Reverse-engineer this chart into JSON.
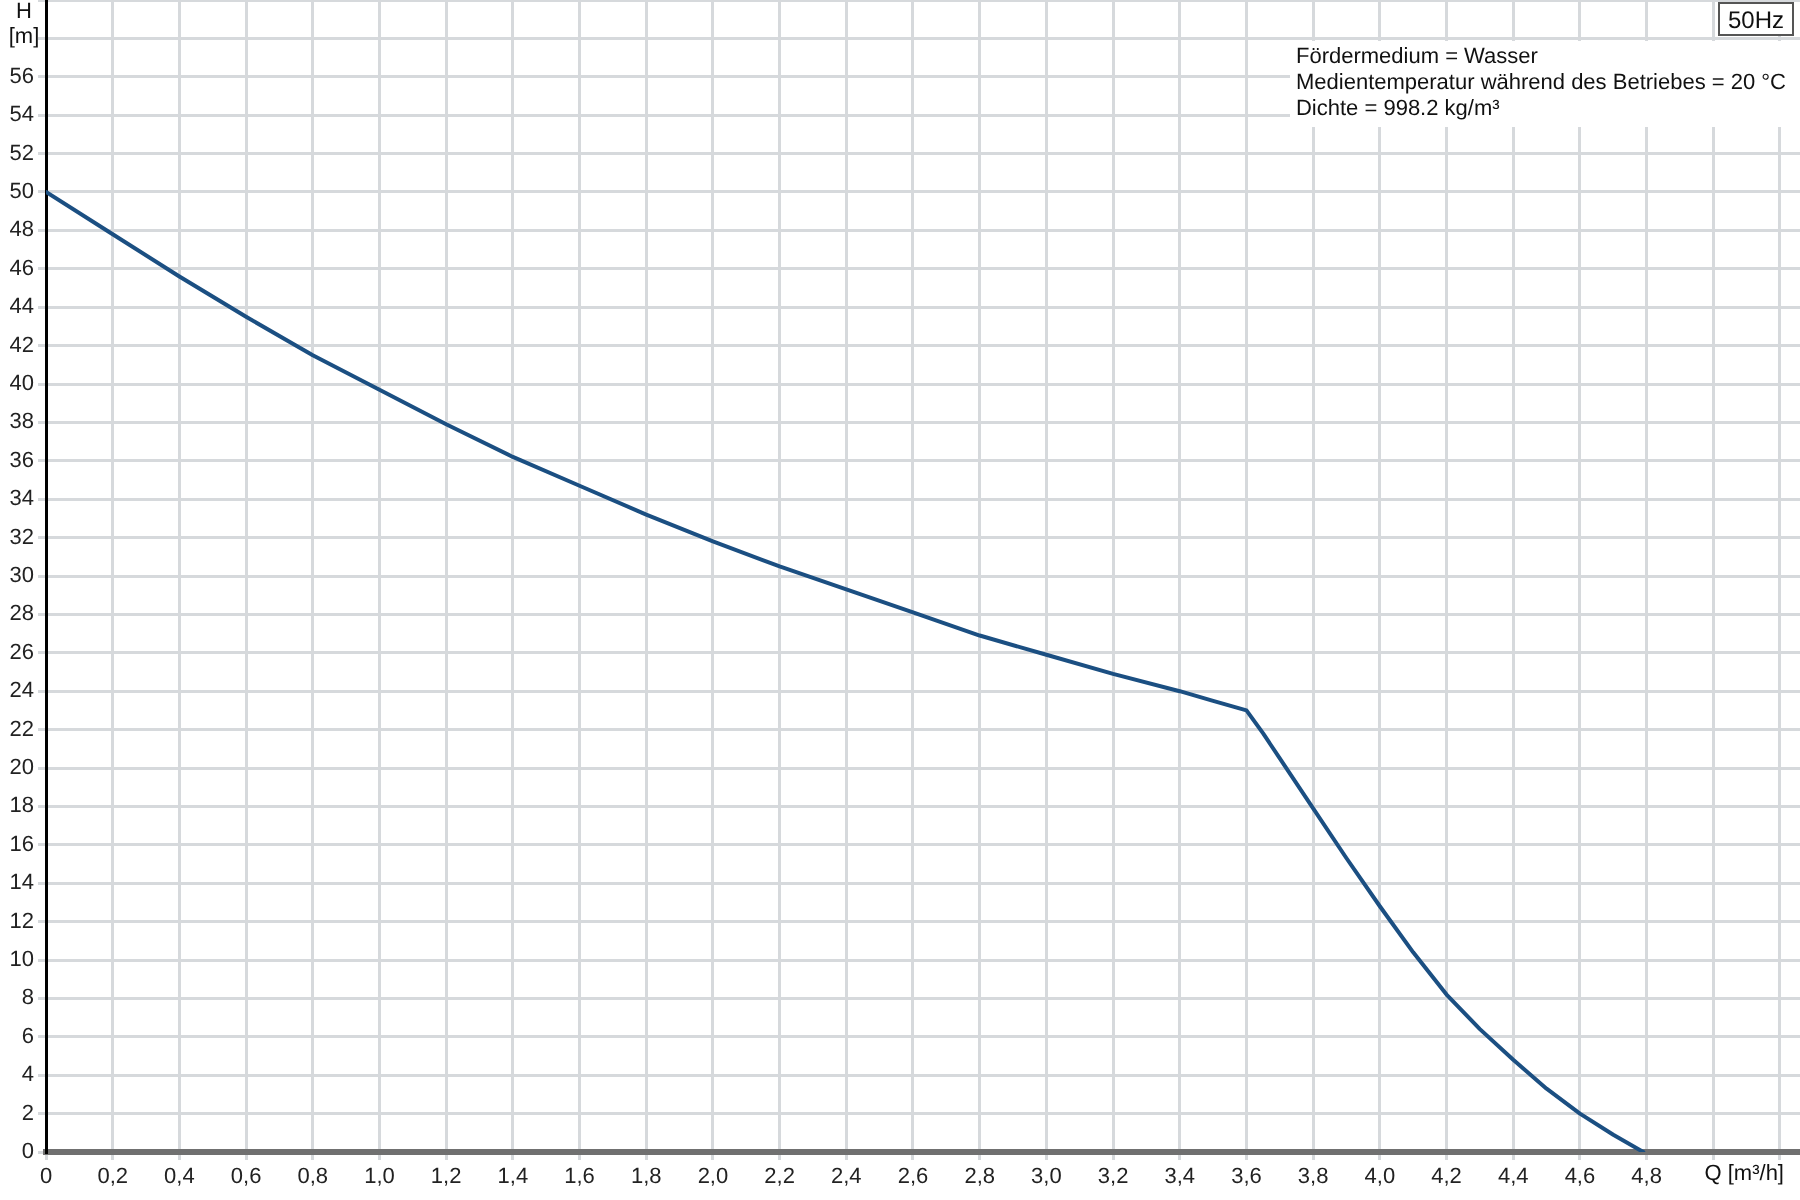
{
  "chart_data": {
    "type": "line",
    "title": "50Hz",
    "xlabel": "Q [m³/h]",
    "ylabel": "H [m]",
    "annotations": [
      "Fördermedium = Wasser",
      "Medientemperatur während des Betriebes = 20 °C",
      "Dichte = 998.2 kg/m³"
    ],
    "x": [
      0,
      0.2,
      0.4,
      0.6,
      0.8,
      1.0,
      1.2,
      1.4,
      1.6,
      1.8,
      2.0,
      2.2,
      2.4,
      2.6,
      2.8,
      3.0,
      3.2,
      3.4,
      3.5,
      3.6,
      3.65,
      3.7,
      3.8,
      3.9,
      4.0,
      4.1,
      4.2,
      4.3,
      4.4,
      4.5,
      4.6,
      4.7,
      4.79
    ],
    "series": [
      {
        "color": "#1b4f82",
        "values": [
          50.0,
          47.8,
          45.6,
          43.5,
          41.5,
          39.7,
          37.9,
          36.2,
          34.7,
          33.2,
          31.8,
          30.5,
          29.3,
          28.1,
          26.9,
          25.9,
          24.9,
          24.0,
          23.5,
          23.0,
          21.8,
          20.5,
          17.9,
          15.3,
          12.8,
          10.4,
          8.2,
          6.4,
          4.8,
          3.3,
          2.0,
          0.9,
          0
        ]
      }
    ],
    "xlim": [
      0,
      5.26
    ],
    "ylim": [
      0,
      60
    ],
    "xticks": [
      0,
      {
        "value": 0.2,
        "label": "0,2"
      },
      {
        "value": 0.4,
        "label": "0,4"
      },
      {
        "value": 0.6,
        "label": "0,6"
      },
      {
        "value": 0.8,
        "label": "0,8"
      },
      {
        "value": 1.0,
        "label": "1,0"
      },
      {
        "value": 1.2,
        "label": "1,2"
      },
      {
        "value": 1.4,
        "label": "1,4"
      },
      {
        "value": 1.6,
        "label": "1,6"
      },
      {
        "value": 1.8,
        "label": "1,8"
      },
      {
        "value": 2.0,
        "label": "2,0"
      },
      {
        "value": 2.2,
        "label": "2,2"
      },
      {
        "value": 2.4,
        "label": "2,4"
      },
      {
        "value": 2.6,
        "label": "2,6"
      },
      {
        "value": 2.8,
        "label": "2,8"
      },
      {
        "value": 3.0,
        "label": "3,0"
      },
      {
        "value": 3.2,
        "label": "3,2"
      },
      {
        "value": 3.4,
        "label": "3,4"
      },
      {
        "value": 3.6,
        "label": "3,6"
      },
      {
        "value": 3.8,
        "label": "3,8"
      },
      {
        "value": 4.0,
        "label": "4,0"
      },
      {
        "value": 4.2,
        "label": "4,2"
      },
      {
        "value": 4.4,
        "label": "4,4"
      },
      {
        "value": 4.6,
        "label": "4,6"
      },
      {
        "value": 4.8,
        "label": "4,8"
      },
      {
        "value": 5.0,
        "label": null
      },
      {
        "value": 5.2,
        "label": null
      }
    ],
    "yticks": [
      0,
      2,
      4,
      6,
      8,
      10,
      12,
      14,
      16,
      18,
      20,
      22,
      24,
      26,
      28,
      30,
      32,
      34,
      36,
      38,
      40,
      42,
      44,
      46,
      48,
      50,
      52,
      54,
      56,
      {
        "value": 58,
        "label": null
      },
      {
        "value": 60,
        "label": null
      }
    ],
    "grid": true,
    "line_style": "solid"
  }
}
